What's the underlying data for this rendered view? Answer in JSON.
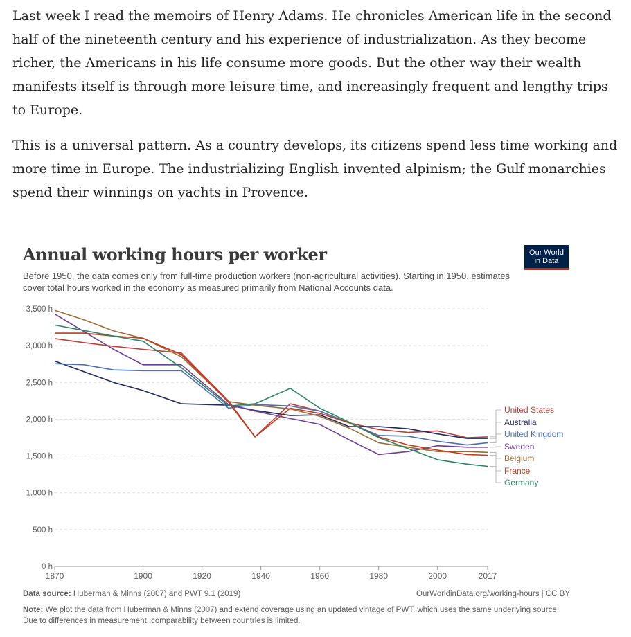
{
  "article": {
    "p1_before": "Last week I read the ",
    "p1_link": "memoirs of Henry Adams",
    "p1_after": ". He chronicles American life in the second half of the nineteenth century and his experience of industrialization. As they become richer, the Americans in his life consume more goods. But the other way their wealth manifests itself is through more leisure time, and increasingly frequent and lengthy trips to Europe.",
    "p2": "This is a universal pattern. As a country develops, its citizens spend less time working and more time in Europe. The industrializing English invented alpinism; the Gulf monarchies spend their winnings on yachts in Provence."
  },
  "logo": {
    "text": "Our World in Data"
  },
  "footer": {
    "source_label": "Data source:",
    "source_text": " Huberman & Minns (2007) and PWT 9.1 (2019)",
    "url_text": "OurWorldinData.org/working-hours | CC BY",
    "note_label": "Note:",
    "note_text": " We plot the data from Huberman & Minns (2007) and extend coverage using an updated vintage of PWT, which uses the same underlying source. Due to differences in measurement, comparability between countries is limited."
  },
  "chart_data": {
    "type": "line",
    "title": "Annual working hours per worker",
    "subtitle": "Before 1950, the data comes only from full-time production workers (non-agricultural activities). Starting in 1950, estimates cover total hours worked in the economy as measured primarily from National Accounts data.",
    "xlim": [
      1870,
      2017
    ],
    "ylim": [
      0,
      3500
    ],
    "x_ticks": [
      1870,
      1900,
      1920,
      1940,
      1960,
      1980,
      2000,
      2017
    ],
    "y_ticks": [
      {
        "value": 0,
        "label": "0 h"
      },
      {
        "value": 500,
        "label": "500 h"
      },
      {
        "value": 1000,
        "label": "1,000 h"
      },
      {
        "value": 1500,
        "label": "1,500 h"
      },
      {
        "value": 2000,
        "label": "2,000 h"
      },
      {
        "value": 2500,
        "label": "2,500 h"
      },
      {
        "value": 3000,
        "label": "3,000 h"
      },
      {
        "value": 3500,
        "label": "3,500 h"
      }
    ],
    "grid": true,
    "legend_position": "right",
    "series": [
      {
        "name": "United States",
        "color": "#be3d36",
        "points": [
          [
            1870,
            3096
          ],
          [
            1880,
            3040
          ],
          [
            1890,
            2990
          ],
          [
            1900,
            2950
          ],
          [
            1913,
            2900
          ],
          [
            1929,
            2250
          ],
          [
            1938,
            1760
          ],
          [
            1950,
            2210
          ],
          [
            1960,
            2110
          ],
          [
            1970,
            1950
          ],
          [
            1980,
            1860
          ],
          [
            1990,
            1820
          ],
          [
            2000,
            1840
          ],
          [
            2010,
            1750
          ],
          [
            2017,
            1760
          ]
        ]
      },
      {
        "name": "Australia",
        "color": "#1f2a5c",
        "points": [
          [
            1870,
            2790
          ],
          [
            1890,
            2500
          ],
          [
            1900,
            2390
          ],
          [
            1913,
            2210
          ],
          [
            1929,
            2190
          ],
          [
            1938,
            2120
          ],
          [
            1950,
            2050
          ],
          [
            1960,
            2060
          ],
          [
            1970,
            1900
          ],
          [
            1980,
            1900
          ],
          [
            1990,
            1870
          ],
          [
            2000,
            1800
          ],
          [
            2010,
            1740
          ],
          [
            2017,
            1740
          ]
        ]
      },
      {
        "name": "United Kingdom",
        "color": "#4c6fb0",
        "points": [
          [
            1870,
            2755
          ],
          [
            1880,
            2740
          ],
          [
            1890,
            2670
          ],
          [
            1900,
            2660
          ],
          [
            1913,
            2660
          ],
          [
            1929,
            2150
          ],
          [
            1938,
            2200
          ],
          [
            1950,
            2180
          ],
          [
            1960,
            2110
          ],
          [
            1970,
            1950
          ],
          [
            1980,
            1780
          ],
          [
            1990,
            1770
          ],
          [
            2000,
            1700
          ],
          [
            2010,
            1650
          ],
          [
            2017,
            1680
          ]
        ]
      },
      {
        "name": "Sweden",
        "color": "#6d3e91",
        "points": [
          [
            1870,
            3430
          ],
          [
            1890,
            2950
          ],
          [
            1900,
            2740
          ],
          [
            1913,
            2740
          ],
          [
            1929,
            2200
          ],
          [
            1938,
            2110
          ],
          [
            1950,
            2010
          ],
          [
            1960,
            1930
          ],
          [
            1970,
            1720
          ],
          [
            1980,
            1520
          ],
          [
            1990,
            1560
          ],
          [
            2000,
            1640
          ],
          [
            2010,
            1620
          ],
          [
            2017,
            1620
          ]
        ]
      },
      {
        "name": "Belgium",
        "color": "#996d39",
        "points": [
          [
            1870,
            3480
          ],
          [
            1880,
            3350
          ],
          [
            1890,
            3200
          ],
          [
            1900,
            3100
          ],
          [
            1913,
            2850
          ],
          [
            1929,
            2240
          ],
          [
            1938,
            2190
          ],
          [
            1950,
            2140
          ],
          [
            1960,
            2040
          ],
          [
            1970,
            1880
          ],
          [
            1980,
            1680
          ],
          [
            1990,
            1620
          ],
          [
            2000,
            1560
          ],
          [
            2010,
            1560
          ],
          [
            2017,
            1550
          ]
        ]
      },
      {
        "name": "France",
        "color": "#c33b1d",
        "points": [
          [
            1870,
            3170
          ],
          [
            1880,
            3170
          ],
          [
            1890,
            3130
          ],
          [
            1900,
            3100
          ],
          [
            1913,
            2880
          ],
          [
            1929,
            2230
          ],
          [
            1938,
            1760
          ],
          [
            1950,
            2150
          ],
          [
            1960,
            2080
          ],
          [
            1970,
            1950
          ],
          [
            1980,
            1760
          ],
          [
            1990,
            1650
          ],
          [
            2000,
            1580
          ],
          [
            2010,
            1520
          ],
          [
            2017,
            1510
          ]
        ]
      },
      {
        "name": "Germany",
        "color": "#2c8465",
        "points": [
          [
            1870,
            3280
          ],
          [
            1890,
            3130
          ],
          [
            1900,
            3060
          ],
          [
            1913,
            2700
          ],
          [
            1929,
            2180
          ],
          [
            1938,
            2210
          ],
          [
            1950,
            2420
          ],
          [
            1960,
            2150
          ],
          [
            1970,
            1960
          ],
          [
            1980,
            1750
          ],
          [
            1990,
            1600
          ],
          [
            2000,
            1450
          ],
          [
            2010,
            1390
          ],
          [
            2017,
            1360
          ]
        ]
      }
    ]
  }
}
